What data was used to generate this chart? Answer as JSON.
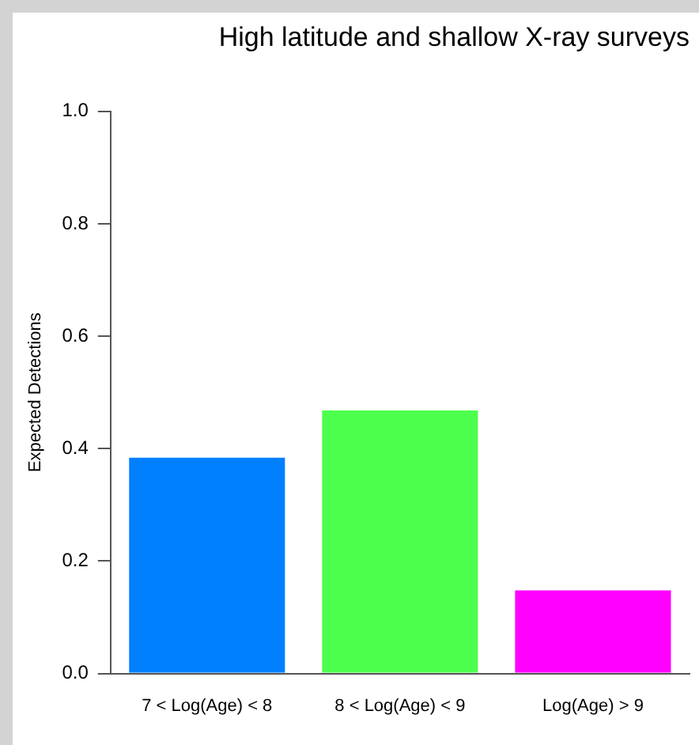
{
  "chart_data": {
    "type": "bar",
    "title": "High latitude and shallow X-ray surveys",
    "ylabel": "Expected Detections",
    "categories": [
      "7 < Log(Age) < 8",
      "8 < Log(Age) < 9",
      "Log(Age) > 9"
    ],
    "values": [
      0.384,
      0.468,
      0.148
    ],
    "colors": [
      "#0080ff",
      "#4dff4d",
      "#ff00ff"
    ],
    "ylim": [
      0,
      1
    ],
    "yticks": [
      {
        "value": 0,
        "label": "0.0"
      },
      0.2,
      0.4,
      0.6,
      0.8,
      {
        "value": 1,
        "label": "1.0"
      }
    ],
    "grid": false,
    "legend": false
  }
}
